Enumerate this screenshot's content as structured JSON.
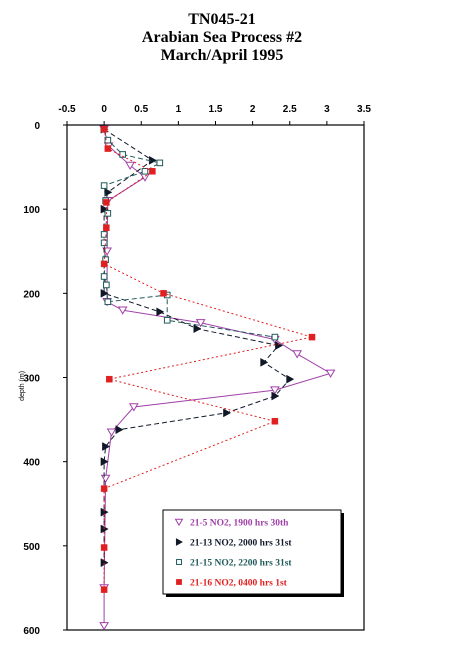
{
  "chart_data": {
    "type": "scatter",
    "title": [
      "TN045-21",
      "Arabian Sea Process #2",
      "March/April  1995"
    ],
    "xlabel": "",
    "ylabel": "depth (m)",
    "xlim": [
      -0.5,
      3.5
    ],
    "ylim": [
      0,
      600
    ],
    "y_inverted": true,
    "x_axis_position": "top",
    "x_ticks": [
      -0.5,
      0,
      0.5,
      1,
      1.5,
      2,
      2.5,
      3,
      3.5
    ],
    "x_tick_labels": [
      "-0.5",
      "0",
      "0.5",
      "1",
      "1.5",
      "2",
      "2.5",
      "3",
      "3.5"
    ],
    "y_ticks": [
      0,
      100,
      200,
      300,
      400,
      500,
      600
    ],
    "y_tick_labels": [
      "0",
      "100",
      "200",
      "300",
      "400",
      "500",
      "600"
    ],
    "grid": false,
    "legend_position": "bottom-right",
    "series": [
      {
        "name": "21-5 NO2, 1900 hrs 30th",
        "color": "#a040a8",
        "marker": "triangle-down-open",
        "line": "solid",
        "points": [
          [
            0.0,
            5
          ],
          [
            0.06,
            25
          ],
          [
            0.35,
            48
          ],
          [
            0.55,
            62
          ],
          [
            0.05,
            90
          ],
          [
            0.04,
            150
          ],
          [
            0.04,
            210
          ],
          [
            0.25,
            220
          ],
          [
            1.3,
            235
          ],
          [
            2.3,
            255
          ],
          [
            2.6,
            272
          ],
          [
            3.05,
            295
          ],
          [
            2.3,
            315
          ],
          [
            0.4,
            335
          ],
          [
            0.1,
            365
          ],
          [
            0.02,
            420
          ],
          [
            0.0,
            550
          ],
          [
            0.0,
            595
          ]
        ]
      },
      {
        "name": "21-13 NO2, 2000 hrs 31st",
        "color": "#101828",
        "marker": "triangle-right-filled",
        "line": "dashed",
        "points": [
          [
            0.0,
            5
          ],
          [
            0.65,
            42
          ],
          [
            0.05,
            80
          ],
          [
            0.0,
            100
          ],
          [
            0.0,
            200
          ],
          [
            0.75,
            222
          ],
          [
            1.25,
            242
          ],
          [
            2.35,
            262
          ],
          [
            2.15,
            282
          ],
          [
            2.5,
            302
          ],
          [
            2.3,
            322
          ],
          [
            1.65,
            342
          ],
          [
            0.2,
            362
          ],
          [
            0.02,
            382
          ],
          [
            0.0,
            400
          ],
          [
            0.0,
            460
          ],
          [
            0.0,
            480
          ],
          [
            0.0,
            520
          ]
        ]
      },
      {
        "name": "21-15 NO2, 2200 hrs 31st",
        "color": "#205a5a",
        "marker": "square-open",
        "line": "dashed",
        "points": [
          [
            0.0,
            5
          ],
          [
            0.05,
            18
          ],
          [
            0.25,
            35
          ],
          [
            0.75,
            45
          ],
          [
            0.55,
            55
          ],
          [
            0.0,
            72
          ],
          [
            0.02,
            90
          ],
          [
            0.05,
            105
          ],
          [
            0.0,
            130
          ],
          [
            0.0,
            140
          ],
          [
            0.02,
            160
          ],
          [
            0.0,
            180
          ],
          [
            0.03,
            190
          ],
          [
            0.05,
            210
          ],
          [
            0.85,
            202
          ],
          [
            0.85,
            232
          ],
          [
            2.3,
            252
          ]
        ]
      },
      {
        "name": "21-16 NO2, 0400 hrs 1st",
        "color": "#e02020",
        "marker": "square-filled",
        "line": "dotted",
        "points": [
          [
            0.0,
            5
          ],
          [
            0.05,
            28
          ],
          [
            0.65,
            55
          ],
          [
            0.03,
            92
          ],
          [
            0.03,
            122
          ],
          [
            0.0,
            165
          ],
          [
            0.8,
            200
          ],
          [
            2.8,
            252
          ],
          [
            0.07,
            302
          ],
          [
            2.3,
            352
          ],
          [
            0.0,
            432
          ],
          [
            0.0,
            502
          ],
          [
            0.0,
            552
          ]
        ]
      }
    ]
  }
}
